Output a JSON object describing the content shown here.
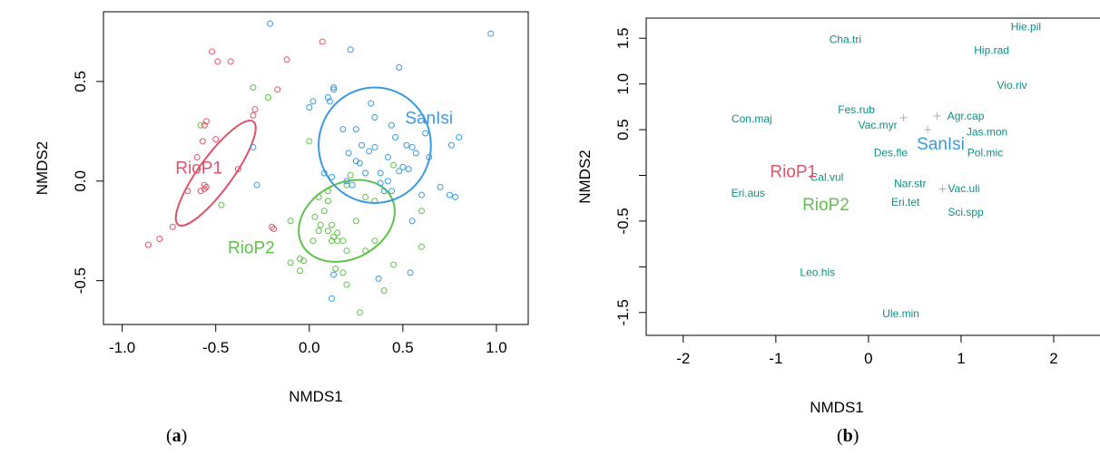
{
  "captions": {
    "a": {
      "open": "(",
      "letter": "a",
      "close": ")"
    },
    "b": {
      "open": "(",
      "letter": "b",
      "close": ")"
    }
  },
  "chart_data": [
    {
      "type": "scatter",
      "panel": "a",
      "title": "",
      "xlabel": "NMDS1",
      "ylabel": "NMDS2",
      "xlim": [
        -1.1,
        1.17
      ],
      "ylim": [
        -0.72,
        0.85
      ],
      "xticks": [
        -1.0,
        -0.5,
        0.0,
        0.5,
        1.0
      ],
      "xtick_labels": [
        "-1.0",
        "-0.5",
        "0.0",
        "0.5",
        "1.0"
      ],
      "yticks": [
        -0.5,
        0.0,
        0.5
      ],
      "ytick_labels": [
        "-0.5",
        "0.0",
        "0.5"
      ],
      "grid": false,
      "marker": "open-circle",
      "series": [
        {
          "name": "RioP1",
          "color": "#e0536b",
          "label_at": [
            -0.59,
            0.06
          ],
          "ellipse": {
            "center": [
              -0.5,
              0.04
            ],
            "rx": 0.09,
            "ry": 0.32,
            "rotate": 36
          },
          "x": [
            -0.86,
            -0.8,
            -0.73,
            -0.65,
            -0.6,
            -0.58,
            -0.56,
            -0.55,
            -0.56,
            -0.57,
            -0.56,
            -0.55,
            -0.5,
            -0.52,
            -0.49,
            -0.42,
            -0.38,
            -0.3,
            -0.29,
            -0.2,
            -0.19,
            -0.12,
            -0.17,
            0.07
          ],
          "y": [
            -0.32,
            -0.29,
            -0.23,
            -0.05,
            0.12,
            -0.05,
            -0.04,
            -0.03,
            -0.02,
            0.2,
            0.28,
            0.3,
            0.21,
            0.65,
            0.6,
            0.6,
            0.06,
            0.33,
            0.36,
            -0.23,
            -0.24,
            0.61,
            0.46,
            0.7
          ]
        },
        {
          "name": "RioP2",
          "color": "#5fc24a",
          "label_at": [
            -0.31,
            -0.34
          ],
          "ellipse": {
            "center": [
              0.2,
              -0.2
            ],
            "rx": 0.27,
            "ry": 0.19,
            "rotate": -28
          },
          "x": [
            -0.58,
            -0.47,
            -0.3,
            -0.22,
            -0.1,
            -0.05,
            -0.03,
            0.0,
            0.02,
            0.05,
            0.08,
            0.1,
            0.12,
            0.13,
            0.15,
            0.05,
            0.1,
            0.15,
            0.18,
            0.2,
            0.25,
            0.3,
            0.35,
            0.03,
            0.06,
            0.1,
            0.2,
            0.22,
            0.3,
            0.4,
            0.45,
            0.12,
            0.18,
            0.35,
            0.45,
            0.6,
            0.6,
            0.27,
            0.2,
            0.14,
            -0.1,
            -0.05
          ],
          "y": [
            0.28,
            -0.12,
            0.47,
            0.42,
            -0.2,
            -0.45,
            -0.4,
            0.2,
            -0.3,
            -0.25,
            -0.15,
            -0.1,
            -0.22,
            -0.28,
            -0.26,
            -0.08,
            -0.05,
            -0.3,
            -0.3,
            -0.35,
            -0.2,
            -0.08,
            -0.1,
            -0.18,
            -0.22,
            -0.25,
            -0.02,
            0.03,
            -0.35,
            -0.55,
            0.08,
            -0.3,
            -0.46,
            -0.3,
            -0.42,
            -0.15,
            -0.33,
            -0.66,
            -0.52,
            -0.44,
            -0.41,
            -0.39
          ]
        },
        {
          "name": "SanIsi",
          "color": "#3a9ae0",
          "label_at": [
            0.64,
            0.31
          ],
          "ellipse": {
            "center": [
              0.35,
              0.18
            ],
            "rx": 0.3,
            "ry": 0.29,
            "rotate": 0
          },
          "x": [
            -0.21,
            -0.3,
            -0.28,
            0.02,
            0.0,
            0.1,
            0.13,
            0.11,
            0.13,
            0.22,
            0.33,
            0.35,
            0.25,
            0.28,
            0.32,
            0.3,
            0.38,
            0.42,
            0.44,
            0.46,
            0.48,
            0.5,
            0.52,
            0.55,
            0.57,
            0.62,
            0.64,
            0.7,
            0.75,
            0.78,
            0.8,
            0.97,
            0.48,
            0.18,
            0.25,
            0.27,
            0.38,
            0.4,
            0.35,
            0.44,
            0.08,
            0.12,
            0.2,
            0.23,
            0.42,
            0.55,
            0.6,
            0.13,
            0.12,
            0.37,
            0.54,
            0.76,
            0.53,
            0.21
          ],
          "y": [
            0.79,
            0.17,
            -0.02,
            0.4,
            0.37,
            0.42,
            0.47,
            0.4,
            0.46,
            0.66,
            0.39,
            0.32,
            0.26,
            0.18,
            0.15,
            0.04,
            0.04,
            0.12,
            0.28,
            0.22,
            0.05,
            0.07,
            0.18,
            0.17,
            0.14,
            0.24,
            0.12,
            -0.03,
            -0.07,
            -0.08,
            0.22,
            0.74,
            0.57,
            0.26,
            0.1,
            0.09,
            -0.01,
            -0.05,
            0.17,
            -0.05,
            0.04,
            0.02,
            0.0,
            -0.02,
            0.0,
            -0.2,
            -0.07,
            -0.47,
            -0.59,
            -0.49,
            -0.46,
            0.18,
            0.06,
            0.14
          ]
        }
      ]
    },
    {
      "type": "scatter",
      "panel": "b",
      "title": "",
      "xlabel": "NMDS1",
      "ylabel": "NMDS2",
      "xlim": [
        -2.4,
        2.5
      ],
      "ylim": [
        -1.75,
        1.72
      ],
      "xticks": [
        -2,
        -1,
        0,
        1,
        2
      ],
      "xtick_labels": [
        "-2",
        "-1",
        "0",
        "1",
        "2"
      ],
      "yticks": [
        -1.5,
        -1.0,
        -0.5,
        0.0,
        0.5,
        1.0,
        1.5
      ],
      "ytick_labels": [
        "-1.5",
        "",
        "-0.5",
        "",
        "0.5",
        "1.0",
        "1.5"
      ],
      "grid": false,
      "species_color": "#0f8f84",
      "species": [
        {
          "label": "Hie.pil",
          "x": 1.7,
          "y": 1.62
        },
        {
          "label": "Cha.tri",
          "x": -0.25,
          "y": 1.48
        },
        {
          "label": "Hip.rad",
          "x": 1.33,
          "y": 1.36
        },
        {
          "label": "Vio.riv",
          "x": 1.55,
          "y": 0.98
        },
        {
          "label": "Fes.rub",
          "x": -0.13,
          "y": 0.71
        },
        {
          "label": "Agr.cap",
          "x": 1.05,
          "y": 0.64
        },
        {
          "label": "Con.maj",
          "x": -1.26,
          "y": 0.61
        },
        {
          "label": "Vac.myr",
          "x": 0.1,
          "y": 0.54
        },
        {
          "label": "Jas.mon",
          "x": 1.28,
          "y": 0.47
        },
        {
          "label": "Des.fle",
          "x": 0.24,
          "y": 0.24
        },
        {
          "label": "Pol.mic",
          "x": 1.26,
          "y": 0.24
        },
        {
          "label": "Cal.vul",
          "x": -0.45,
          "y": -0.03
        },
        {
          "label": "Nar.str",
          "x": 0.45,
          "y": -0.1
        },
        {
          "label": "Vac.uli",
          "x": 1.03,
          "y": -0.15
        },
        {
          "label": "Eri.aus",
          "x": -1.3,
          "y": -0.2
        },
        {
          "label": "Eri.tet",
          "x": 0.4,
          "y": -0.3
        },
        {
          "label": "Sci.spp",
          "x": 1.05,
          "y": -0.41
        },
        {
          "label": "Leo.his",
          "x": -0.55,
          "y": -1.07
        },
        {
          "label": "Ule.min",
          "x": 0.35,
          "y": -1.52
        }
      ],
      "sites": [
        {
          "label": "RioP1",
          "x": -0.81,
          "y": 0.03,
          "color": "#e0536b"
        },
        {
          "label": "RioP2",
          "x": -0.46,
          "y": -0.33,
          "color": "#5fc24a"
        },
        {
          "label": "SanIsi",
          "x": 0.78,
          "y": 0.33,
          "color": "#3a9ae0"
        }
      ],
      "crosses": [
        {
          "x": 0.38,
          "y": 0.63
        },
        {
          "x": 0.74,
          "y": 0.65
        },
        {
          "x": 0.64,
          "y": 0.5
        },
        {
          "x": 0.8,
          "y": -0.15
        }
      ]
    }
  ]
}
